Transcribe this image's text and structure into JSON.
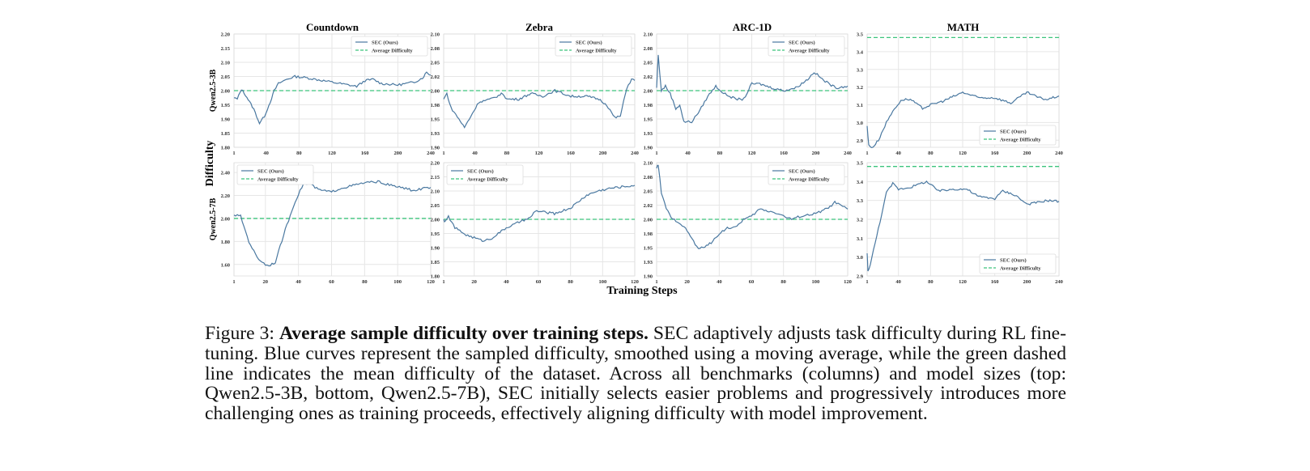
{
  "figure": {
    "shared_ylabel": "Difficulty",
    "shared_xlabel": "Training Steps",
    "row_labels": [
      "Qwen2.5-3B",
      "Qwen2.5-7B"
    ],
    "column_titles": [
      "Countdown",
      "Zebra",
      "ARC-1D",
      "MATH"
    ]
  },
  "caption": {
    "label": "Figure 3:",
    "bold": "Average sample difficulty over training steps.",
    "text": "SEC adaptively adjusts task difficulty during RL fine-tuning. Blue curves represent the sampled difficulty, smoothed using a moving average, while the green dashed line indicates the mean difficulty of the dataset. Across all benchmarks (columns) and model sizes (top: Qwen2.5-3B, bottom, Qwen2.5-7B), SEC initially selects easier problems and progressively introduces more challenging ones as training proceeds, effectively aligning difficulty with model improvement."
  },
  "colors": {
    "sec": "#4a78a0",
    "average": "#3cc47c",
    "grid": "#e6e6e6"
  },
  "chart_data": [
    {
      "type": "line",
      "title": "Countdown",
      "row": "Qwen2.5-3B",
      "xlim": [
        1,
        240
      ],
      "ylim": [
        1.8,
        2.2
      ],
      "grid": true,
      "legend": "top-right",
      "xticks": [
        1,
        40,
        80,
        120,
        160,
        200,
        240
      ],
      "yticks": [
        1.8,
        1.85,
        1.9,
        1.95,
        2.0,
        2.05,
        2.1,
        2.15,
        2.2
      ],
      "yticklabels": [
        "1.80",
        "1.85",
        "1.90",
        "1.95",
        "2.00",
        "2.05",
        "2.10",
        "2.15",
        "2.20"
      ],
      "series": [
        {
          "name": "SEC (Ours)",
          "x": [
            1,
            5,
            10,
            15,
            20,
            25,
            32,
            38,
            45,
            50,
            55,
            65,
            75,
            90,
            110,
            130,
            150,
            160,
            170,
            180,
            200,
            220,
            230,
            235,
            240
          ],
          "y": [
            1.975,
            1.97,
            2.005,
            1.985,
            1.96,
            1.935,
            1.885,
            1.91,
            1.96,
            2.0,
            2.025,
            2.04,
            2.05,
            2.045,
            2.035,
            2.025,
            2.015,
            2.035,
            2.04,
            2.025,
            2.02,
            2.03,
            2.045,
            2.065,
            2.055
          ]
        },
        {
          "name": "Average Difficulty",
          "constant": 2.0
        }
      ]
    },
    {
      "type": "line",
      "title": "Zebra",
      "row": "Qwen2.5-3B",
      "xlim": [
        1,
        240
      ],
      "ylim": [
        1.9,
        2.1
      ],
      "grid": true,
      "legend": "top-right",
      "xticks": [
        1,
        40,
        80,
        120,
        160,
        200,
        240
      ],
      "yticks": [
        1.9,
        1.925,
        1.95,
        1.975,
        2.0,
        2.025,
        2.05,
        2.075,
        2.1
      ],
      "yticklabels": [
        "1.90",
        "1.93",
        "1.95",
        "1.98",
        "2.00",
        "2.02",
        "2.05",
        "2.08",
        "2.10"
      ],
      "series": [
        {
          "name": "SEC (Ours)",
          "x": [
            1,
            5,
            10,
            20,
            27,
            35,
            45,
            60,
            75,
            80,
            95,
            110,
            125,
            140,
            160,
            180,
            195,
            205,
            215,
            222,
            230,
            236,
            240
          ],
          "y": [
            1.985,
            1.995,
            1.97,
            1.95,
            1.935,
            1.955,
            1.98,
            1.985,
            1.995,
            1.985,
            1.985,
            1.995,
            1.99,
            2.0,
            1.99,
            1.99,
            1.985,
            1.975,
            1.952,
            1.955,
            2.005,
            2.02,
            2.018
          ]
        },
        {
          "name": "Average Difficulty",
          "constant": 2.0
        }
      ]
    },
    {
      "type": "line",
      "title": "ARC-1D",
      "row": "Qwen2.5-3B",
      "xlim": [
        1,
        240
      ],
      "ylim": [
        1.9,
        2.1
      ],
      "grid": true,
      "legend": "top-right",
      "xticks": [
        1,
        40,
        80,
        120,
        160,
        200,
        240
      ],
      "yticks": [
        1.9,
        1.925,
        1.95,
        1.975,
        2.0,
        2.025,
        2.05,
        2.075,
        2.1
      ],
      "yticklabels": [
        "1.90",
        "1.93",
        "1.95",
        "1.98",
        "2.00",
        "2.02",
        "2.05",
        "2.08",
        "2.10"
      ],
      "series": [
        {
          "name": "SEC (Ours)",
          "x": [
            1,
            3,
            7,
            12,
            18,
            25,
            30,
            35,
            45,
            55,
            65,
            75,
            85,
            100,
            110,
            120,
            130,
            145,
            160,
            175,
            190,
            198,
            210,
            225,
            240
          ],
          "y": [
            2.005,
            2.062,
            2.0,
            2.008,
            1.995,
            1.968,
            1.975,
            1.945,
            1.945,
            1.965,
            1.99,
            2.008,
            1.995,
            1.985,
            1.985,
            2.012,
            2.012,
            2.005,
            2.0,
            2.005,
            2.02,
            2.033,
            2.018,
            2.005,
            2.008
          ]
        },
        {
          "name": "Average Difficulty",
          "constant": 2.0
        }
      ]
    },
    {
      "type": "line",
      "title": "MATH",
      "row": "Qwen2.5-3B",
      "xlim": [
        1,
        240
      ],
      "ylim": [
        2.86,
        3.5
      ],
      "grid": true,
      "legend": "bottom-right",
      "xticks": [
        1,
        40,
        80,
        120,
        160,
        200,
        240
      ],
      "yticks": [
        2.9,
        3.0,
        3.1,
        3.2,
        3.3,
        3.4,
        3.5
      ],
      "yticklabels": [
        "2.9",
        "3.0",
        "3.1",
        "3.2",
        "3.3",
        "3.4",
        "3.5"
      ],
      "series": [
        {
          "name": "SEC (Ours)",
          "x": [
            1,
            3,
            8,
            15,
            25,
            35,
            45,
            55,
            70,
            80,
            95,
            120,
            140,
            160,
            180,
            200,
            215,
            225,
            240
          ],
          "y": [
            2.98,
            2.87,
            2.86,
            2.9,
            3.0,
            3.08,
            3.13,
            3.13,
            3.08,
            3.1,
            3.12,
            3.17,
            3.14,
            3.14,
            3.11,
            3.17,
            3.14,
            3.13,
            3.15
          ]
        },
        {
          "name": "Average Difficulty",
          "constant": 3.48
        }
      ]
    },
    {
      "type": "line",
      "title": "",
      "row": "Qwen2.5-7B",
      "xlim": [
        1,
        120
      ],
      "ylim": [
        1.5,
        2.485
      ],
      "grid": true,
      "legend": "top-left",
      "xticks": [
        1,
        20,
        40,
        60,
        80,
        100,
        120
      ],
      "yticks": [
        1.6,
        1.8,
        2.0,
        2.2,
        2.4
      ],
      "yticklabels": [
        "1.60",
        "1.80",
        "2.00",
        "2.20",
        "2.40"
      ],
      "series": [
        {
          "name": "SEC (Ours)",
          "x": [
            1,
            5,
            10,
            15,
            20,
            22,
            26,
            32,
            38,
            43,
            47,
            52,
            60,
            65,
            80,
            88,
            95,
            105,
            110,
            115,
            120
          ],
          "y": [
            2.03,
            2.02,
            1.8,
            1.66,
            1.6,
            1.59,
            1.62,
            1.9,
            2.15,
            2.3,
            2.3,
            2.25,
            2.23,
            2.26,
            2.31,
            2.32,
            2.29,
            2.26,
            2.24,
            2.26,
            2.27
          ]
        },
        {
          "name": "Average Difficulty",
          "constant": 2.0
        }
      ]
    },
    {
      "type": "line",
      "title": "",
      "row": "Qwen2.5-7B",
      "xlim": [
        1,
        120
      ],
      "ylim": [
        1.8,
        2.2
      ],
      "grid": true,
      "legend": "top-left",
      "xticks": [
        1,
        20,
        40,
        60,
        80,
        100,
        120
      ],
      "yticks": [
        1.8,
        1.85,
        1.9,
        1.95,
        2.0,
        2.05,
        2.1,
        2.15,
        2.2
      ],
      "yticklabels": [
        "1.80",
        "1.85",
        "1.90",
        "1.95",
        "2.00",
        "2.05",
        "2.10",
        "2.15",
        "2.20"
      ],
      "series": [
        {
          "name": "SEC (Ours)",
          "x": [
            1,
            2,
            4,
            8,
            15,
            25,
            30,
            40,
            50,
            55,
            58,
            70,
            80,
            90,
            97,
            105,
            120
          ],
          "y": [
            2.0,
            1.99,
            2.01,
            1.97,
            1.945,
            1.925,
            1.93,
            1.97,
            1.995,
            2.005,
            2.03,
            2.02,
            2.04,
            2.085,
            2.1,
            2.11,
            2.12
          ]
        },
        {
          "name": "Average Difficulty",
          "constant": 2.0
        }
      ]
    },
    {
      "type": "line",
      "title": "",
      "row": "Qwen2.5-7B",
      "xlim": [
        1,
        120
      ],
      "ylim": [
        1.9,
        2.1
      ],
      "grid": true,
      "legend": "top-right",
      "xticks": [
        1,
        20,
        40,
        60,
        80,
        100,
        120
      ],
      "yticks": [
        1.9,
        1.925,
        1.95,
        1.975,
        2.0,
        2.025,
        2.05,
        2.075,
        2.1
      ],
      "yticklabels": [
        "1.90",
        "1.93",
        "1.95",
        "1.98",
        "2.00",
        "2.02",
        "2.05",
        "2.08",
        "2.10"
      ],
      "series": [
        {
          "name": "SEC (Ours)",
          "x": [
            1,
            2,
            4,
            7,
            10,
            15,
            20,
            27,
            35,
            40,
            45,
            50,
            55,
            60,
            65,
            75,
            85,
            90,
            100,
            108,
            112,
            120
          ],
          "y": [
            2.09,
            2.097,
            2.045,
            2.02,
            2.002,
            1.995,
            1.98,
            1.947,
            1.958,
            1.975,
            1.985,
            1.985,
            2.0,
            2.005,
            2.018,
            2.012,
            2.0,
            2.005,
            2.01,
            2.02,
            2.03,
            2.018
          ]
        },
        {
          "name": "Average Difficulty",
          "constant": 2.0
        }
      ]
    },
    {
      "type": "line",
      "title": "",
      "row": "Qwen2.5-7B",
      "xlim": [
        1,
        240
      ],
      "ylim": [
        2.9,
        3.5
      ],
      "grid": true,
      "legend": "bottom-right",
      "xticks": [
        1,
        40,
        80,
        120,
        160,
        200,
        240
      ],
      "yticks": [
        2.9,
        3.0,
        3.1,
        3.2,
        3.3,
        3.4,
        3.5
      ],
      "yticklabels": [
        "2.9",
        "3.0",
        "3.1",
        "3.2",
        "3.3",
        "3.4",
        "3.5"
      ],
      "series": [
        {
          "name": "SEC (Ours)",
          "x": [
            1,
            2,
            5,
            15,
            25,
            33,
            40,
            55,
            75,
            90,
            110,
            125,
            140,
            160,
            170,
            185,
            200,
            215,
            225,
            240
          ],
          "y": [
            3.02,
            2.93,
            2.96,
            3.15,
            3.34,
            3.39,
            3.36,
            3.37,
            3.4,
            3.35,
            3.36,
            3.36,
            3.32,
            3.31,
            3.35,
            3.33,
            3.28,
            3.29,
            3.3,
            3.295
          ]
        },
        {
          "name": "Average Difficulty",
          "constant": 3.48
        }
      ]
    }
  ]
}
